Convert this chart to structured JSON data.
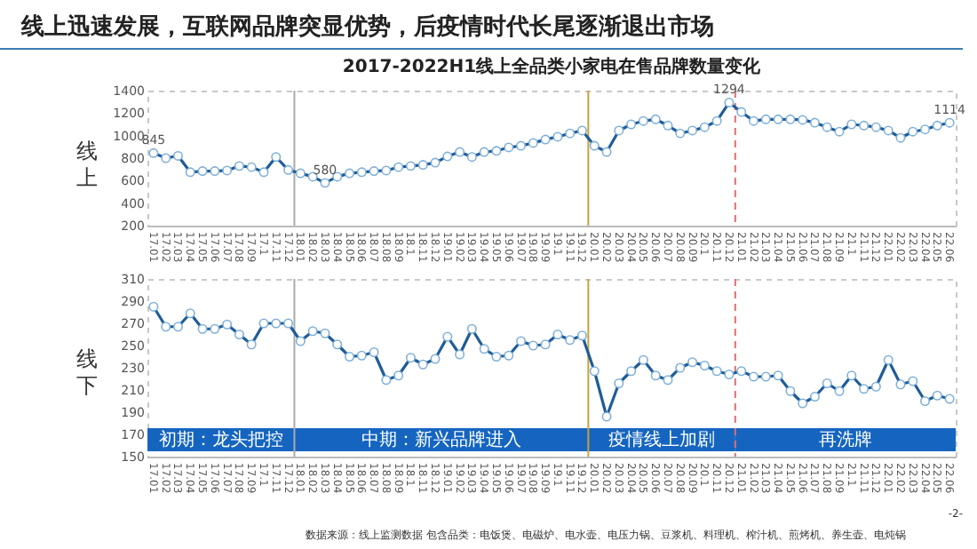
{
  "chart_data": [
    {
      "type": "line",
      "title": "线上迅速发展，互联网品牌突显优势，后疫情时代长尾逐渐退出市场",
      "subtitle": "2017-2022H1线上全品类小家电在售品牌数量变化",
      "ylabel": "线上",
      "categories": [
        "17.01",
        "17.02",
        "17.03",
        "17.04",
        "17.05",
        "17.06",
        "17.07",
        "17.08",
        "17.09",
        "17.1",
        "17.11",
        "17.12",
        "18.01",
        "18.02",
        "18.03",
        "18.04",
        "18.05",
        "18.06",
        "18.07",
        "18.08",
        "18.09",
        "18.1",
        "18.11",
        "18.12",
        "19.01",
        "19.02",
        "19.03",
        "19.04",
        "19.05",
        "19.06",
        "19.07",
        "19.08",
        "19.09",
        "19.1",
        "19.11",
        "19.12",
        "20.01",
        "20.02",
        "20.03",
        "20.04",
        "20.05",
        "20.06",
        "20.07",
        "20.08",
        "20.09",
        "20.1",
        "20.11",
        "20.12",
        "21.01",
        "21.02",
        "21.03",
        "21.04",
        "21.05",
        "21.06",
        "21.07",
        "21.08",
        "21.09",
        "21.1",
        "21.11",
        "21.12",
        "22.01",
        "22.02",
        "22.03",
        "22.04",
        "22.05",
        "22.06"
      ],
      "series": [
        {
          "color": "#1f5c99",
          "values": [
            845,
            800,
            820,
            675,
            685,
            685,
            690,
            730,
            720,
            675,
            810,
            695,
            665,
            635,
            580,
            635,
            665,
            675,
            685,
            690,
            720,
            730,
            740,
            760,
            815,
            855,
            810,
            855,
            865,
            895,
            910,
            935,
            965,
            990,
            1020,
            1045,
            910,
            855,
            1045,
            1100,
            1130,
            1145,
            1090,
            1020,
            1045,
            1075,
            1130,
            1294,
            1210,
            1130,
            1145,
            1145,
            1145,
            1140,
            1115,
            1075,
            1035,
            1100,
            1090,
            1075,
            1045,
            980,
            1035,
            1055,
            1090,
            1114
          ],
          "value_labels": [
            "845",
            null,
            null,
            null,
            null,
            null,
            null,
            null,
            null,
            null,
            null,
            null,
            null,
            null,
            "580",
            null,
            null,
            null,
            null,
            null,
            null,
            null,
            null,
            null,
            null,
            null,
            null,
            null,
            null,
            null,
            null,
            null,
            null,
            null,
            null,
            null,
            null,
            null,
            null,
            null,
            null,
            null,
            null,
            null,
            null,
            null,
            null,
            "1294",
            null,
            null,
            null,
            null,
            null,
            null,
            null,
            null,
            null,
            null,
            null,
            null,
            null,
            null,
            null,
            null,
            null,
            "1114"
          ]
        }
      ],
      "ylim": [
        200,
        1400
      ],
      "yticks": [
        200,
        400,
        600,
        800,
        1000,
        1200,
        1400
      ],
      "marker": "circle",
      "grid": false,
      "ref_lines": [
        {
          "axis": "x",
          "value": "18.01",
          "color": "#aaaaaa"
        },
        {
          "axis": "x",
          "value": "20.01",
          "color": "#c8a040"
        },
        {
          "axis": "x",
          "value": "21.01",
          "color": "#e07070",
          "line_style": "dashed"
        }
      ]
    },
    {
      "type": "line",
      "ylabel": "线下",
      "categories": [
        "17.01",
        "17.02",
        "17.03",
        "17.04",
        "17.05",
        "17.06",
        "17.07",
        "17.08",
        "17.09",
        "17.1",
        "17.11",
        "17.12",
        "18.01",
        "18.02",
        "18.03",
        "18.04",
        "18.05",
        "18.06",
        "18.07",
        "18.08",
        "18.09",
        "18.1",
        "18.11",
        "18.12",
        "19.01",
        "19.02",
        "19.03",
        "19.04",
        "19.05",
        "19.06",
        "19.07",
        "19.08",
        "19.09",
        "19.1",
        "19.11",
        "19.12",
        "20.01",
        "20.02",
        "20.03",
        "20.04",
        "20.05",
        "20.06",
        "20.07",
        "20.08",
        "20.09",
        "20.1",
        "20.11",
        "20.12",
        "21.01",
        "21.02",
        "21.03",
        "21.04",
        "21.05",
        "21.06",
        "21.07",
        "21.08",
        "21.09",
        "21.1",
        "21.11",
        "21.12",
        "22.01",
        "22.02",
        "22.03",
        "22.04",
        "22.05",
        "22.06"
      ],
      "series": [
        {
          "color": "#1f5c99",
          "values": [
            285,
            267,
            267,
            279,
            265,
            265,
            269,
            260,
            251,
            270,
            270,
            270,
            254,
            263,
            261,
            251,
            240,
            241,
            244,
            219,
            223,
            239,
            233,
            238,
            258,
            242,
            265,
            247,
            240,
            241,
            254,
            250,
            251,
            260,
            255,
            259,
            227,
            186,
            216,
            227,
            237,
            223,
            219,
            230,
            235,
            232,
            227,
            224,
            227,
            222,
            222,
            223,
            209,
            198,
            204,
            216,
            209,
            223,
            211,
            213,
            237,
            215,
            218,
            200,
            205,
            202
          ]
        }
      ],
      "ylim": [
        150,
        310
      ],
      "yticks": [
        150,
        170,
        190,
        210,
        230,
        250,
        270,
        290,
        310
      ],
      "marker": "circle",
      "grid": false,
      "ref_lines": [
        {
          "axis": "x",
          "value": "18.01",
          "color": "#aaaaaa"
        },
        {
          "axis": "x",
          "value": "20.01",
          "color": "#c8a040"
        },
        {
          "axis": "x",
          "value": "21.01",
          "color": "#e07070",
          "line_style": "dashed"
        }
      ],
      "bands": [
        {
          "axis": "x",
          "from": "17.01",
          "to": "17.12",
          "label": "初期：龙头把控",
          "color": "#1565c0"
        },
        {
          "axis": "x",
          "from": "18.01",
          "to": "19.12",
          "label": "中期：新兴品牌进入",
          "color": "#1565c0"
        },
        {
          "axis": "x",
          "from": "20.01",
          "to": "20.12",
          "label": "疫情线上加剧",
          "color": "#1565c0"
        },
        {
          "axis": "x",
          "from": "21.01",
          "to": "22.06",
          "label": "再洗牌",
          "color": "#1565c0"
        }
      ],
      "annotations": [
        "数据来源：线上监测数据 包含品类：电饭煲、电磁炉、电水壶、电压力锅、豆浆机、料理机、榨汁机、煎烤机、养生壶、电炖锅",
        "-2-"
      ]
    }
  ]
}
